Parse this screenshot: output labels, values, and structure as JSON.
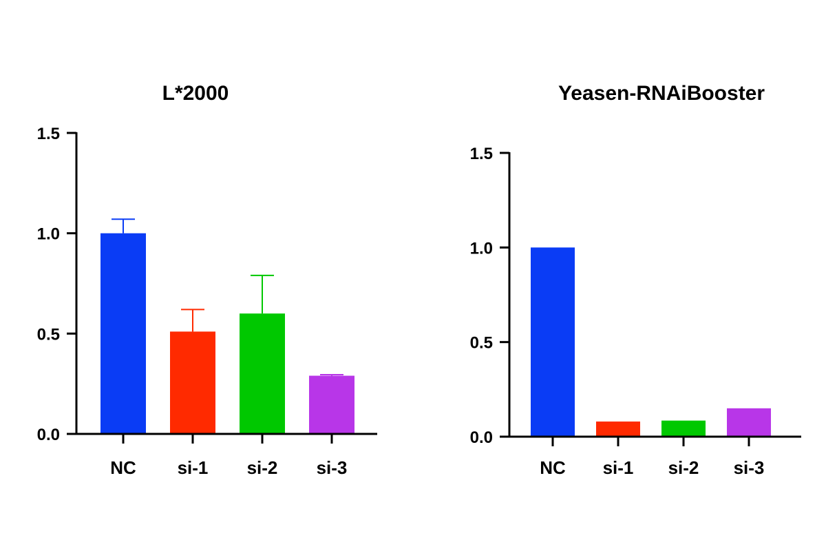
{
  "chart_data": [
    {
      "type": "bar",
      "title": "L*2000",
      "xlabel": "",
      "ylabel": "",
      "categories": [
        "NC",
        "si-1",
        "si-2",
        "si-3"
      ],
      "values": [
        1.0,
        0.51,
        0.6,
        0.29
      ],
      "error_upper": [
        0.07,
        0.11,
        0.19,
        0.005
      ],
      "colors": [
        "#0a3cf5",
        "#ff2a00",
        "#00c800",
        "#b836e8"
      ],
      "ylim": [
        0,
        1.5
      ],
      "yticks": [
        "0.0",
        "0.5",
        "1.0",
        "1.5"
      ],
      "grid": false,
      "legend": "none"
    },
    {
      "type": "bar",
      "title": "Yeasen-RNAiBooster",
      "xlabel": "",
      "ylabel": "",
      "categories": [
        "NC",
        "si-1",
        "si-2",
        "si-3"
      ],
      "values": [
        1.0,
        0.08,
        0.085,
        0.15
      ],
      "colors": [
        "#0a3cf5",
        "#ff2a00",
        "#00c800",
        "#b836e8"
      ],
      "ylim": [
        0,
        1.5
      ],
      "yticks": [
        "0.0",
        "0.5",
        "1.0",
        "1.5"
      ],
      "grid": false,
      "legend": "none"
    }
  ]
}
